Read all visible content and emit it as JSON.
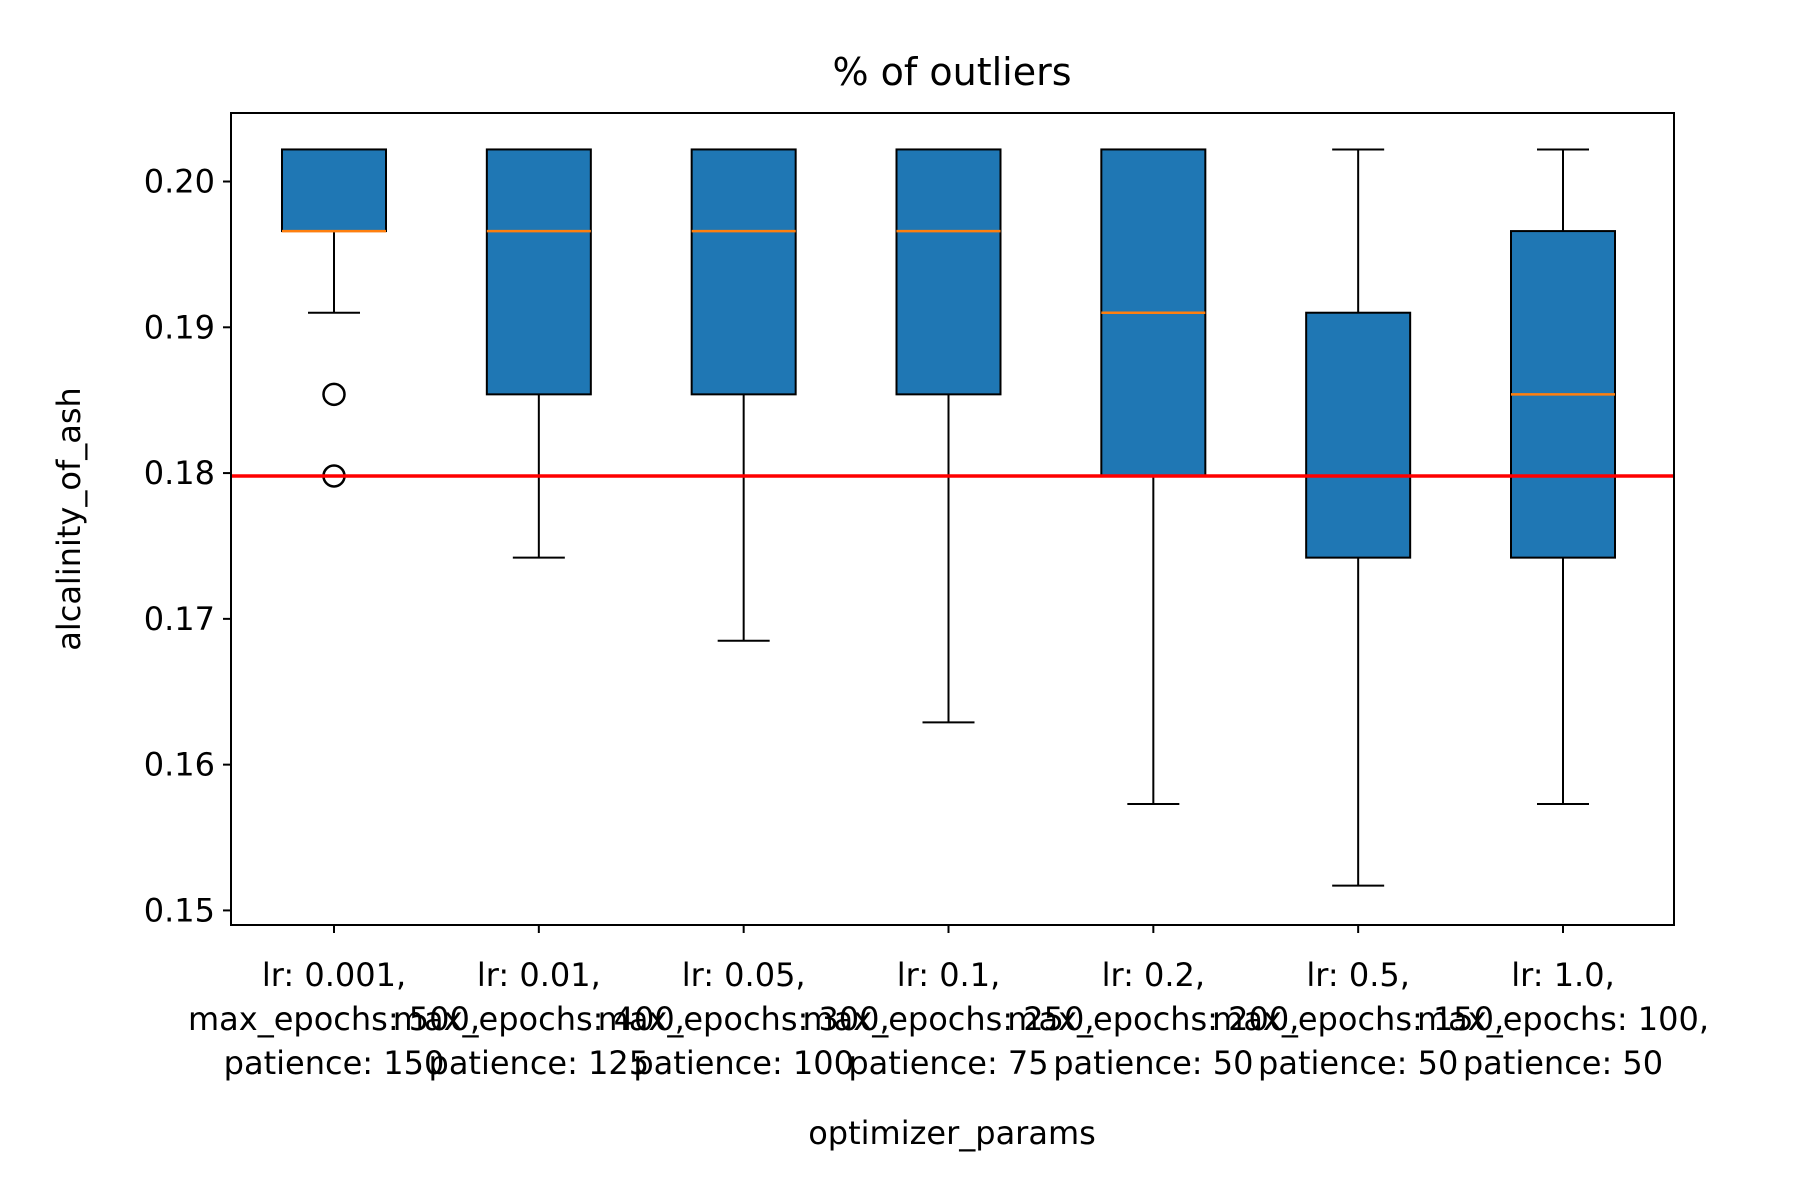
{
  "chart_data": {
    "type": "box",
    "title": "% of outliers",
    "xlabel": "optimizer_params",
    "ylabel": "alcalinity_of_ash",
    "ylim": [
      0.149,
      0.2047
    ],
    "yticks": [
      "0.15",
      "0.16",
      "0.17",
      "0.18",
      "0.19",
      "0.20"
    ],
    "ytick_values": [
      0.15,
      0.16,
      0.17,
      0.18,
      0.19,
      0.2
    ],
    "reference_line": {
      "value": 0.1798,
      "color": "#ff0000"
    },
    "box_color": "#1f77b4",
    "median_color": "#ff7f0e",
    "grid": false,
    "categories": [
      {
        "lines": [
          "lr: 0.001,",
          "max_epochs: 500,",
          "patience: 150"
        ],
        "whislo": 0.191,
        "q1": 0.1966,
        "med": 0.1966,
        "q3": 0.2022,
        "whishi": 0.2022,
        "fliers": [
          0.1854,
          0.1798
        ]
      },
      {
        "lines": [
          "lr: 0.01,",
          "max_epochs: 400,",
          "patience: 125"
        ],
        "whislo": 0.1742,
        "q1": 0.1854,
        "med": 0.1966,
        "q3": 0.2022,
        "whishi": 0.2022,
        "fliers": []
      },
      {
        "lines": [
          "lr: 0.05,",
          "max_epochs: 300,",
          "patience: 100"
        ],
        "whislo": 0.1685,
        "q1": 0.1854,
        "med": 0.1966,
        "q3": 0.2022,
        "whishi": 0.2022,
        "fliers": []
      },
      {
        "lines": [
          "lr: 0.1,",
          "max_epochs: 250,",
          "patience: 75"
        ],
        "whislo": 0.1629,
        "q1": 0.1854,
        "med": 0.1966,
        "q3": 0.2022,
        "whishi": 0.2022,
        "fliers": []
      },
      {
        "lines": [
          "lr: 0.2,",
          "max_epochs: 200,",
          "patience: 50"
        ],
        "whislo": 0.1573,
        "q1": 0.1798,
        "med": 0.191,
        "q3": 0.2022,
        "whishi": 0.2022,
        "fliers": []
      },
      {
        "lines": [
          "lr: 0.5,",
          "max_epochs: 150,",
          "patience: 50"
        ],
        "whislo": 0.1517,
        "q1": 0.1742,
        "med": 0.1798,
        "q3": 0.191,
        "whishi": 0.2022,
        "fliers": []
      },
      {
        "lines": [
          "lr: 1.0,",
          "max_epochs: 100,",
          "patience: 50"
        ],
        "whislo": 0.1573,
        "q1": 0.1742,
        "med": 0.1854,
        "q3": 0.1966,
        "whishi": 0.2022,
        "fliers": []
      }
    ]
  }
}
